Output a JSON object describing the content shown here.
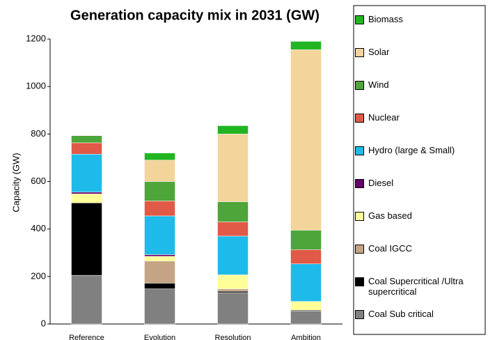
{
  "chart_data": {
    "type": "stacked_bar",
    "title": "Generation capacity mix in 2031 (GW)",
    "y_label": "Capacity (GW)",
    "categories": [
      "Reference",
      "Evolution",
      "Resolution",
      "Ambition"
    ],
    "ylim": [
      0,
      1200
    ],
    "yticks": [
      0,
      200,
      400,
      600,
      800,
      1000,
      1200
    ],
    "legend": "right",
    "series": [
      {
        "name": "Coal Sub critical",
        "color": "#808080",
        "values": [
          205,
          148,
          132,
          55
        ]
      },
      {
        "name": "Coal Supercritical /Ultra supercritical",
        "color": "#000000",
        "values": [
          305,
          24,
          6,
          3
        ]
      },
      {
        "name": "Coal IGCC",
        "color": "#c4a484",
        "values": [
          0,
          93,
          10,
          0
        ]
      },
      {
        "name": "Gas based",
        "color": "#ffff99",
        "values": [
          38,
          20,
          59,
          37
        ]
      },
      {
        "name": "Diesel",
        "color": "#660066",
        "values": [
          7,
          7,
          0,
          0
        ]
      },
      {
        "name": "Hydro (large & Small)",
        "color": "#1ebbea",
        "values": [
          160,
          163,
          163,
          158
        ]
      },
      {
        "name": "Nuclear",
        "color": "#e05a47",
        "values": [
          48,
          63,
          60,
          60
        ]
      },
      {
        "name": "Wind",
        "color": "#4ea53a",
        "values": [
          30,
          82,
          85,
          82
        ]
      },
      {
        "name": "Solar",
        "color": "#f3d49b",
        "values": [
          0,
          90,
          285,
          760
        ]
      },
      {
        "name": "Biomass",
        "color": "#22b522",
        "values": [
          0,
          30,
          35,
          35
        ]
      }
    ]
  }
}
